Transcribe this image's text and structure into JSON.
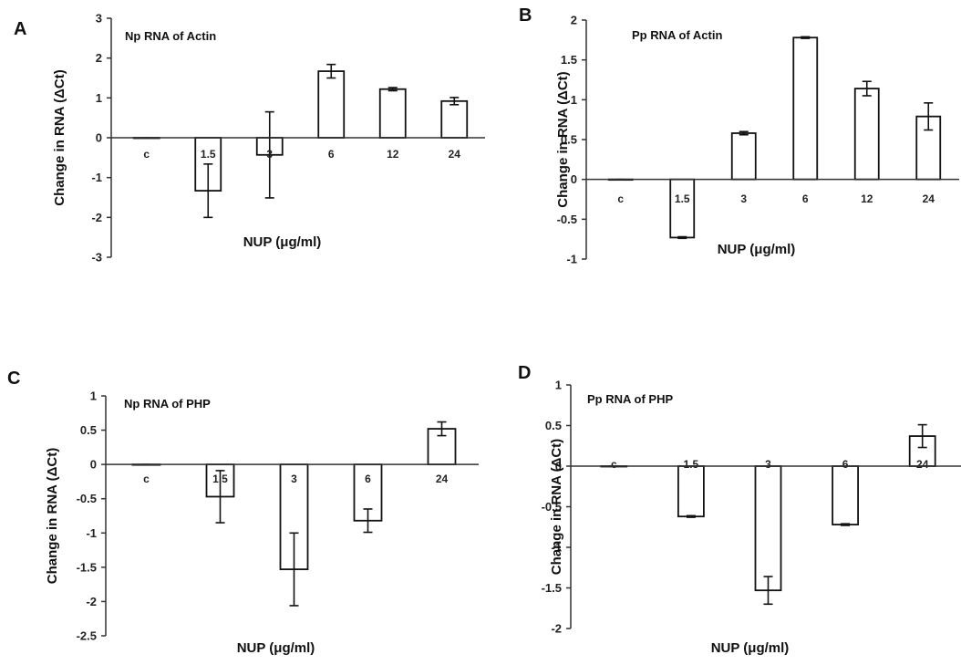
{
  "chart_data": [
    {
      "id": "A",
      "type": "bar",
      "title": "Np RNA of Actin",
      "xlabel": "NUP (μg/ml)",
      "ylabel": "Change in RNA (ΔCt)",
      "categories": [
        "c",
        "1.5",
        "3",
        "6",
        "12",
        "24"
      ],
      "values": [
        0,
        -1.33,
        -0.43,
        1.67,
        1.22,
        0.92
      ],
      "errors": [
        0,
        0.67,
        1.08,
        0.17,
        0.04,
        0.09
      ],
      "yticks": [
        "3",
        "2",
        "1",
        "0",
        "-1",
        "-2",
        "-3"
      ],
      "ylim": [
        -3,
        3
      ],
      "grid": false
    },
    {
      "id": "B",
      "type": "bar",
      "title": "Pp RNA of Actin",
      "xlabel": "NUP (μg/ml)",
      "ylabel": "Change in RNA (ΔCt)",
      "categories": [
        "c",
        "1.5",
        "3",
        "6",
        "12",
        "24"
      ],
      "values": [
        0,
        -0.73,
        0.58,
        1.78,
        1.14,
        0.79
      ],
      "errors": [
        0,
        0.01,
        0.02,
        0.01,
        0.09,
        0.17
      ],
      "yticks": [
        "2",
        "1.5",
        "1",
        "0.5",
        "0",
        "-0.5",
        "-1"
      ],
      "ylim": [
        -1,
        2
      ],
      "grid": false
    },
    {
      "id": "C",
      "type": "bar",
      "title": "Np RNA of PHP",
      "xlabel": "NUP (μg/ml)",
      "ylabel": "Change in RNA (ΔCt)",
      "categories": [
        "c",
        "1.5",
        "3",
        "6",
        "24"
      ],
      "values": [
        0,
        -0.47,
        -1.53,
        -0.82,
        0.52
      ],
      "errors": [
        0,
        0.38,
        0.53,
        0.17,
        0.1
      ],
      "yticks": [
        "1",
        "0.5",
        "0",
        "-0.5",
        "-1",
        "-1.5",
        "-2",
        "-2.5"
      ],
      "ylim": [
        -2.5,
        1
      ],
      "grid": false
    },
    {
      "id": "D",
      "type": "bar",
      "title": "Pp RNA of PHP",
      "xlabel": "NUP (μg/ml)",
      "ylabel": "Change in RNA (ΔCt)",
      "categories": [
        "c",
        "1.5",
        "3",
        "6",
        "24"
      ],
      "values": [
        0,
        -0.62,
        -1.53,
        -0.72,
        0.37
      ],
      "errors": [
        0,
        0.01,
        0.17,
        0.01,
        0.14
      ],
      "yticks": [
        "1",
        "0.5",
        "0",
        "-0.5",
        "-1",
        "-1.5",
        "-2"
      ],
      "ylim": [
        -2,
        1
      ],
      "grid": false
    }
  ]
}
